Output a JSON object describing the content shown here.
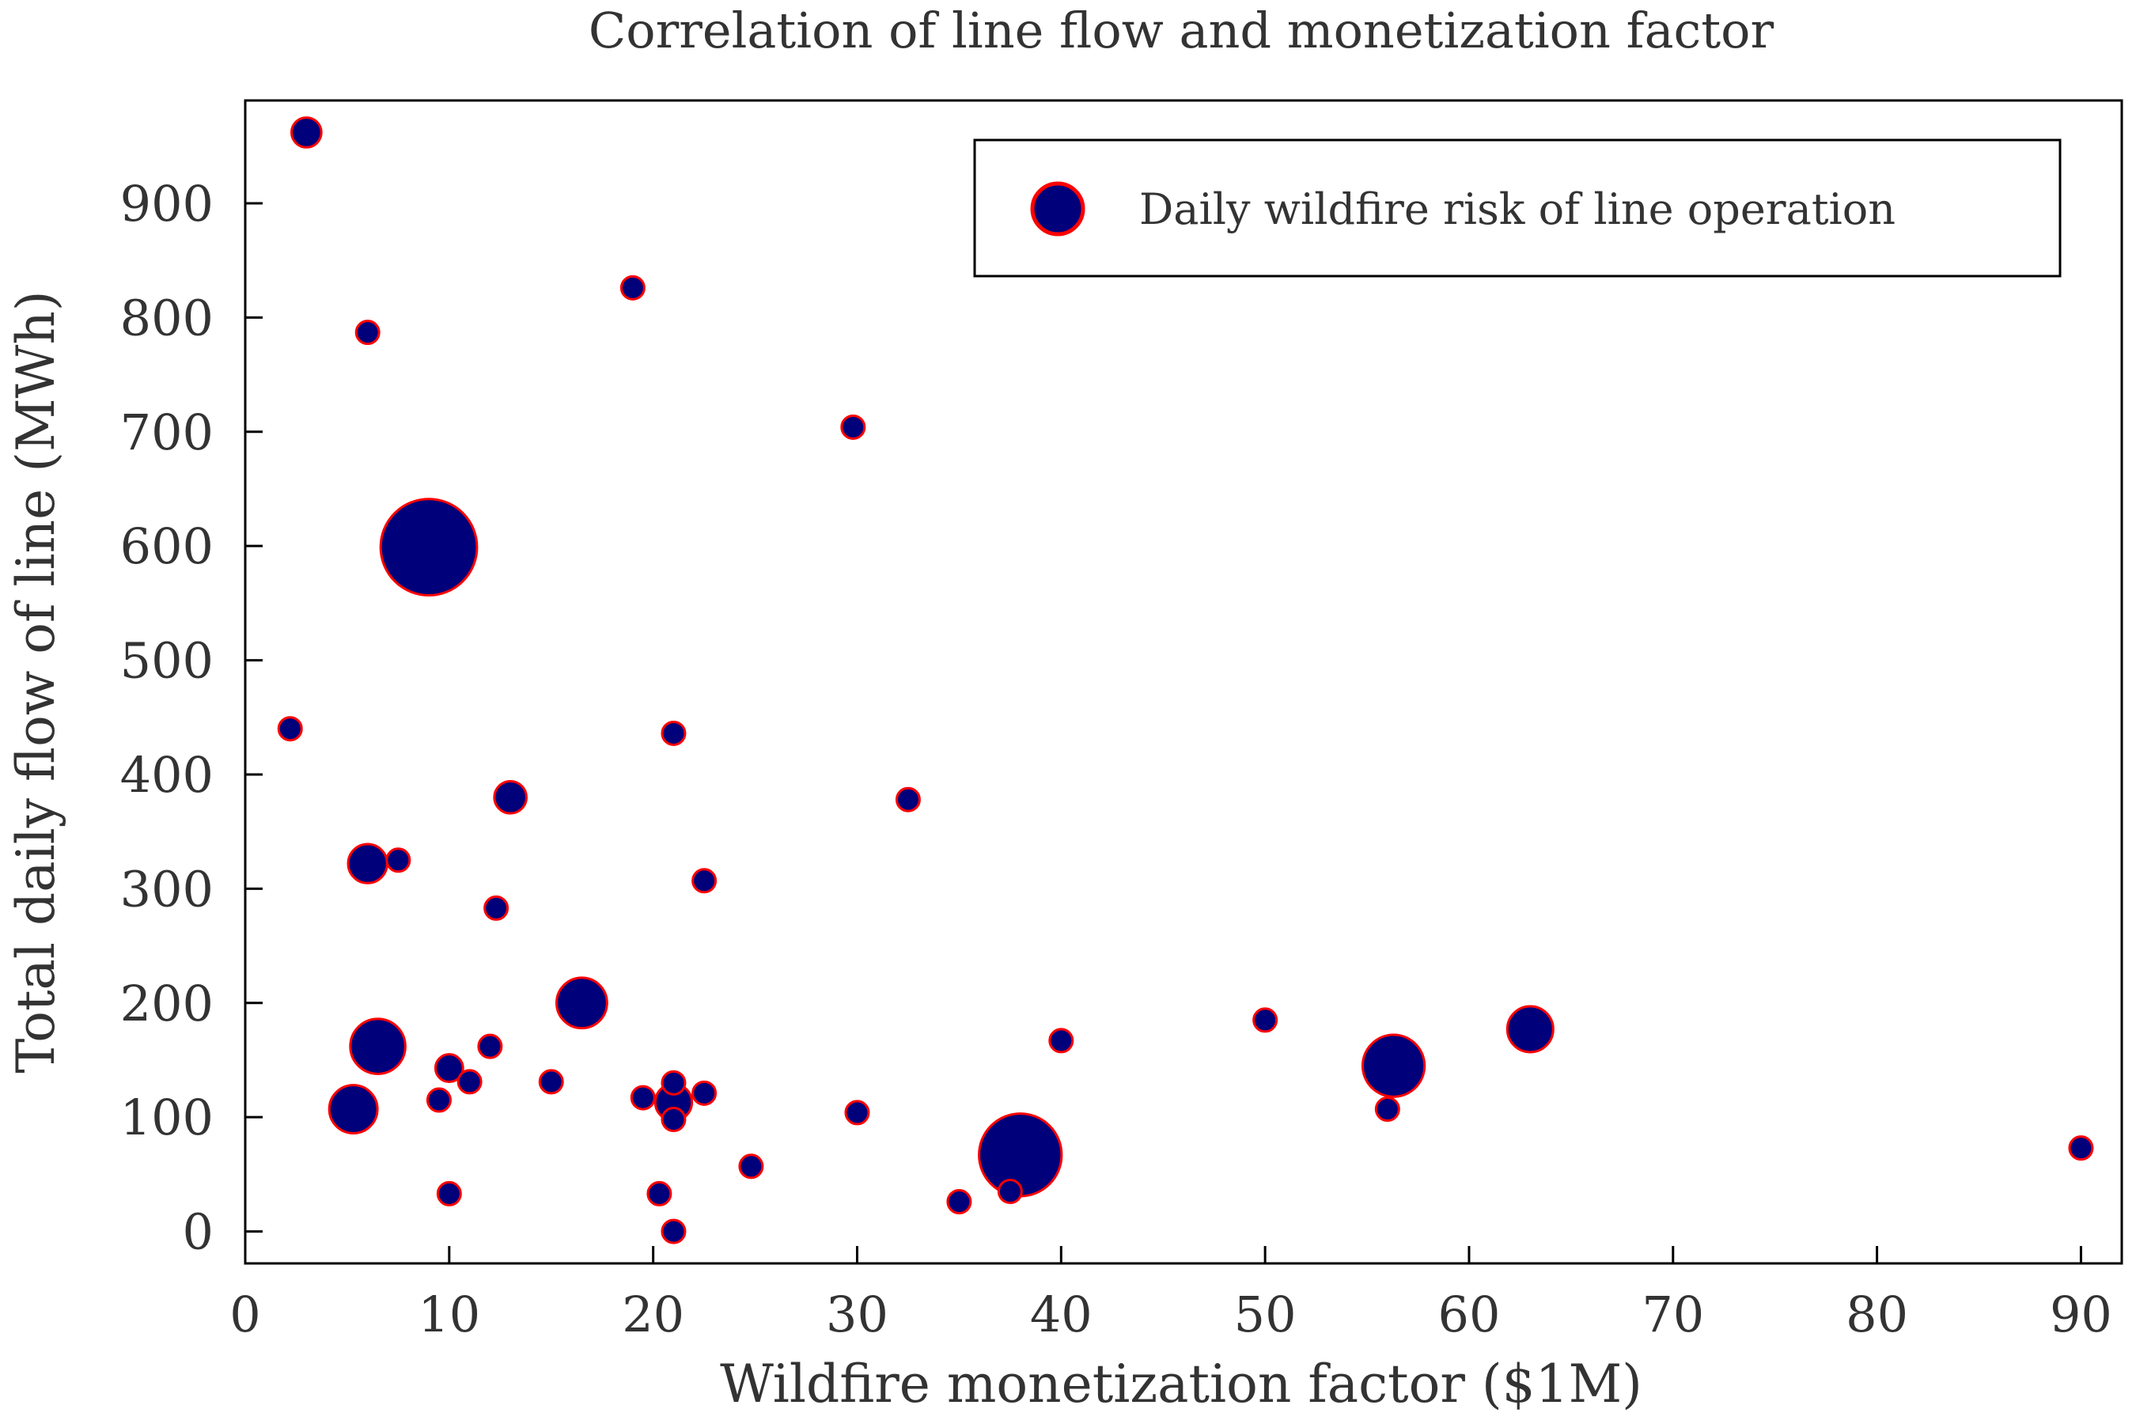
{
  "chart_data": {
    "type": "scatter",
    "title": "Correlation of line flow and monetization factor",
    "xlabel": "Wildfire monetization factor ($1M)",
    "ylabel": "Total daily flow of line (MWh)",
    "xlim": [
      0,
      92
    ],
    "ylim": [
      -28,
      990
    ],
    "xticks": [
      0,
      10,
      20,
      30,
      40,
      50,
      60,
      70,
      80,
      90
    ],
    "yticks": [
      0,
      100,
      200,
      300,
      400,
      500,
      600,
      700,
      800,
      900
    ],
    "xtick_labels": [
      "0",
      "10",
      "20",
      "30",
      "40",
      "50",
      "60",
      "70",
      "80",
      "90"
    ],
    "ytick_labels": [
      "0",
      "100",
      "200",
      "300",
      "400",
      "500",
      "600",
      "700",
      "800",
      "900"
    ],
    "grid": false,
    "legend_position": "top-right",
    "colors": {
      "fill": "#00007a",
      "edge": "#ff0000",
      "frame": "#000000",
      "text": "#333333"
    },
    "series": [
      {
        "name": "Daily wildfire risk of line operation",
        "marker_size_meaning": "daily wildfire risk (relative bubble size)",
        "points": [
          {
            "x": 3.0,
            "y": 962,
            "size": 1.3
          },
          {
            "x": 19.0,
            "y": 826,
            "size": 1.0
          },
          {
            "x": 6.0,
            "y": 787,
            "size": 1.0
          },
          {
            "x": 29.8,
            "y": 704,
            "size": 1.0
          },
          {
            "x": 9.0,
            "y": 599,
            "size": 4.2
          },
          {
            "x": 2.2,
            "y": 440,
            "size": 1.0
          },
          {
            "x": 21.0,
            "y": 436,
            "size": 1.0
          },
          {
            "x": 13.0,
            "y": 380,
            "size": 1.4
          },
          {
            "x": 32.5,
            "y": 378,
            "size": 1.0
          },
          {
            "x": 6.0,
            "y": 322,
            "size": 1.7
          },
          {
            "x": 7.5,
            "y": 325,
            "size": 1.0
          },
          {
            "x": 22.5,
            "y": 307,
            "size": 1.0
          },
          {
            "x": 12.3,
            "y": 283,
            "size": 1.0
          },
          {
            "x": 16.5,
            "y": 200,
            "size": 2.2
          },
          {
            "x": 6.5,
            "y": 162,
            "size": 2.4
          },
          {
            "x": 12.0,
            "y": 162,
            "size": 1.0
          },
          {
            "x": 10.0,
            "y": 143,
            "size": 1.2
          },
          {
            "x": 11.0,
            "y": 131,
            "size": 1.0
          },
          {
            "x": 9.5,
            "y": 115,
            "size": 1.0
          },
          {
            "x": 5.3,
            "y": 107,
            "size": 2.1
          },
          {
            "x": 15.0,
            "y": 131,
            "size": 1.0
          },
          {
            "x": 19.5,
            "y": 117,
            "size": 1.0
          },
          {
            "x": 21.0,
            "y": 130,
            "size": 1.0
          },
          {
            "x": 21.0,
            "y": 113,
            "size": 1.6
          },
          {
            "x": 21.0,
            "y": 98,
            "size": 1.0
          },
          {
            "x": 22.5,
            "y": 121,
            "size": 1.0
          },
          {
            "x": 30.0,
            "y": 104,
            "size": 1.0
          },
          {
            "x": 10.0,
            "y": 33,
            "size": 1.0
          },
          {
            "x": 20.3,
            "y": 33,
            "size": 1.0
          },
          {
            "x": 21.0,
            "y": 0,
            "size": 1.0
          },
          {
            "x": 24.8,
            "y": 57,
            "size": 1.0
          },
          {
            "x": 35.0,
            "y": 26,
            "size": 1.0
          },
          {
            "x": 37.5,
            "y": 35,
            "size": 1.0
          },
          {
            "x": 38.0,
            "y": 67,
            "size": 3.6
          },
          {
            "x": 40.0,
            "y": 167,
            "size": 1.0
          },
          {
            "x": 50.0,
            "y": 185,
            "size": 1.0
          },
          {
            "x": 56.0,
            "y": 107,
            "size": 1.0
          },
          {
            "x": 56.3,
            "y": 145,
            "size": 2.7
          },
          {
            "x": 63.0,
            "y": 177,
            "size": 2.0
          },
          {
            "x": 90.0,
            "y": 73,
            "size": 1.0
          }
        ]
      }
    ]
  }
}
